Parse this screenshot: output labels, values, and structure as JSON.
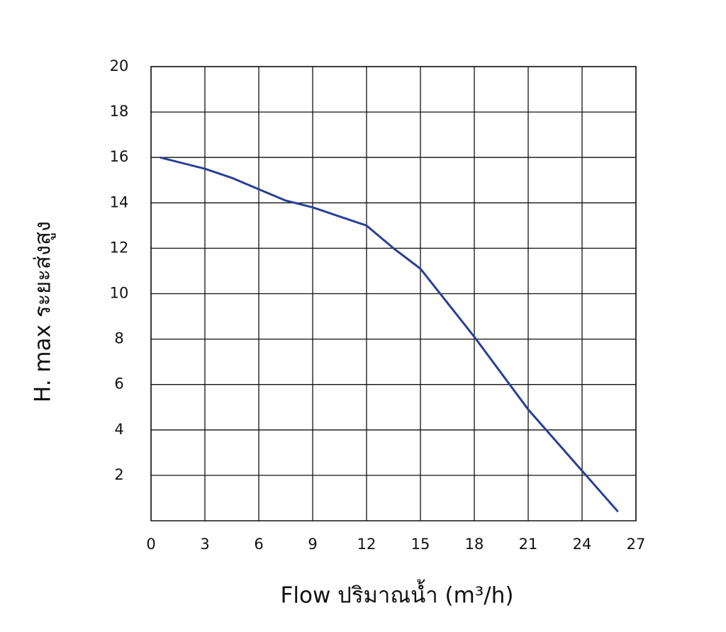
{
  "chart_data": {
    "type": "line",
    "x_label": "Flow  ปริมาณน้ำ (m³/h)",
    "y_label": "H. max  ระยะส่งสูง",
    "x": [
      0.5,
      3,
      4.5,
      6,
      7.5,
      9,
      12,
      13.5,
      15,
      18,
      21,
      24,
      26
    ],
    "series": [
      {
        "color": "#2b3f94",
        "values": [
          16.0,
          15.5,
          15.1,
          14.6,
          14.1,
          13.8,
          13.0,
          12.0,
          11.1,
          8.1,
          4.9,
          2.2,
          0.4
        ]
      }
    ],
    "xlim": [
      0,
      27
    ],
    "xticks": [
      0,
      3,
      6,
      9,
      12,
      15,
      18,
      21,
      24,
      27
    ],
    "ylim": [
      0,
      20
    ],
    "yticks": [
      2,
      4,
      6,
      8,
      10,
      12,
      14,
      16,
      18,
      20
    ],
    "grid": true
  }
}
